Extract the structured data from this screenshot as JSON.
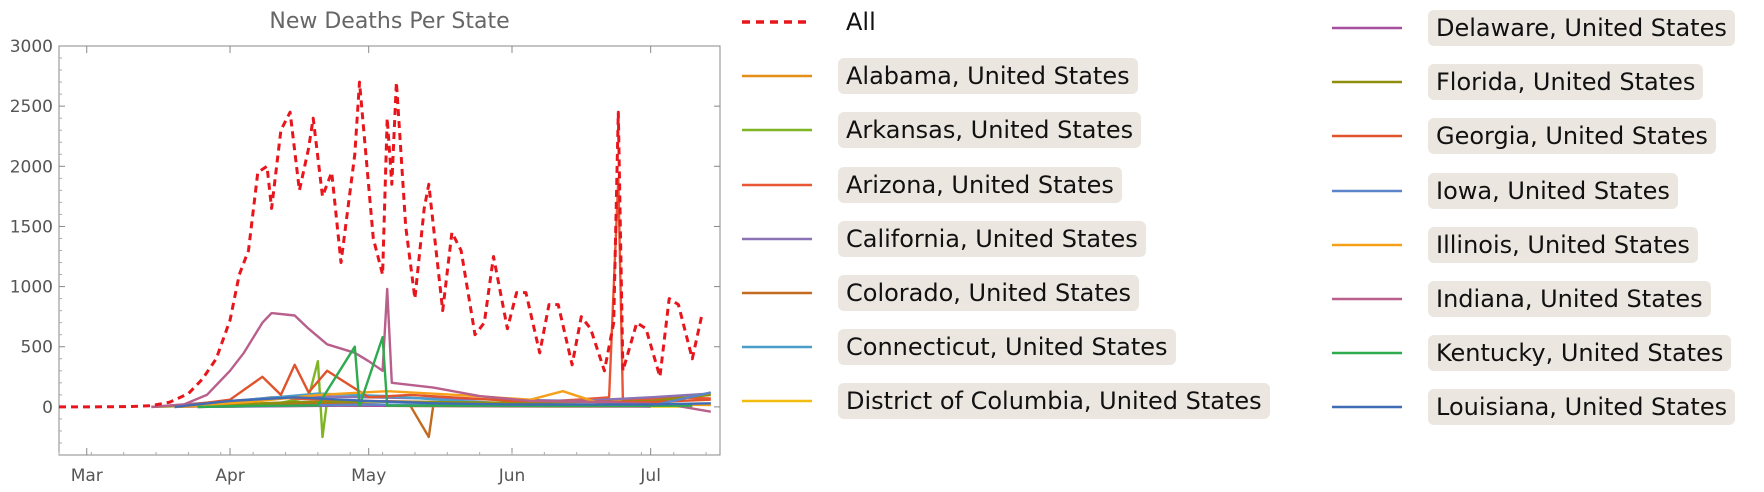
{
  "chart_data": {
    "type": "line",
    "title": "New Deaths Per State",
    "xlabel": "",
    "ylabel": "",
    "x_ticks": [
      "Mar",
      "Apr",
      "May",
      "Jun",
      "Jul"
    ],
    "x_range": [
      "2020-02-24",
      "2020-07-16"
    ],
    "ylim": [
      -400,
      3000
    ],
    "y_ticks": [
      0,
      500,
      1000,
      1500,
      2000,
      2500,
      3000
    ],
    "grid": false,
    "legend_position": "right",
    "series": [
      {
        "name": "All",
        "color": "#e8161c",
        "dash": "dashed",
        "key": [
          [
            "2020-02-24",
            0
          ],
          [
            "2020-03-01",
            0
          ],
          [
            "2020-03-10",
            2
          ],
          [
            "2020-03-15",
            10
          ],
          [
            "2020-03-19",
            40
          ],
          [
            "2020-03-23",
            110
          ],
          [
            "2020-03-26",
            230
          ],
          [
            "2020-03-29",
            400
          ],
          [
            "2020-04-01",
            720
          ],
          [
            "2020-04-03",
            1100
          ],
          [
            "2020-04-05",
            1300
          ],
          [
            "2020-04-07",
            1950
          ],
          [
            "2020-04-09",
            2000
          ],
          [
            "2020-04-10",
            1650
          ],
          [
            "2020-04-12",
            2300
          ],
          [
            "2020-04-14",
            2450
          ],
          [
            "2020-04-16",
            1800
          ],
          [
            "2020-04-18",
            2150
          ],
          [
            "2020-04-19",
            2400
          ],
          [
            "2020-04-21",
            1750
          ],
          [
            "2020-04-23",
            1950
          ],
          [
            "2020-04-25",
            1200
          ],
          [
            "2020-04-28",
            2100
          ],
          [
            "2020-04-29",
            2700
          ],
          [
            "2020-05-02",
            1400
          ],
          [
            "2020-05-04",
            1100
          ],
          [
            "2020-05-05",
            2400
          ],
          [
            "2020-05-06",
            1850
          ],
          [
            "2020-05-07",
            2700
          ],
          [
            "2020-05-09",
            1500
          ],
          [
            "2020-05-11",
            900
          ],
          [
            "2020-05-13",
            1650
          ],
          [
            "2020-05-14",
            1850
          ],
          [
            "2020-05-17",
            800
          ],
          [
            "2020-05-19",
            1450
          ],
          [
            "2020-05-21",
            1300
          ],
          [
            "2020-05-24",
            600
          ],
          [
            "2020-05-26",
            700
          ],
          [
            "2020-05-28",
            1250
          ],
          [
            "2020-05-31",
            650
          ],
          [
            "2020-06-02",
            950
          ],
          [
            "2020-06-04",
            950
          ],
          [
            "2020-06-07",
            450
          ],
          [
            "2020-06-09",
            850
          ],
          [
            "2020-06-11",
            850
          ],
          [
            "2020-06-14",
            350
          ],
          [
            "2020-06-16",
            750
          ],
          [
            "2020-06-18",
            650
          ],
          [
            "2020-06-21",
            300
          ],
          [
            "2020-06-23",
            700
          ],
          [
            "2020-06-24",
            2450
          ],
          [
            "2020-06-25",
            300
          ],
          [
            "2020-06-28",
            700
          ],
          [
            "2020-06-30",
            650
          ],
          [
            "2020-07-03",
            250
          ],
          [
            "2020-07-05",
            900
          ],
          [
            "2020-07-07",
            850
          ],
          [
            "2020-07-10",
            400
          ],
          [
            "2020-07-12",
            750
          ]
        ]
      },
      {
        "name": "Alabama, United States",
        "color": "#e38e16",
        "key": [
          [
            "2020-03-25",
            0
          ],
          [
            "2020-04-05",
            8
          ],
          [
            "2020-04-20",
            15
          ],
          [
            "2020-05-05",
            12
          ],
          [
            "2020-05-20",
            18
          ],
          [
            "2020-06-05",
            15
          ],
          [
            "2020-06-20",
            20
          ],
          [
            "2020-07-05",
            25
          ],
          [
            "2020-07-14",
            20
          ]
        ]
      },
      {
        "name": "Arkansas, United States",
        "color": "#7fb424",
        "key": [
          [
            "2020-03-25",
            0
          ],
          [
            "2020-04-10",
            20
          ],
          [
            "2020-04-18",
            80
          ],
          [
            "2020-04-20",
            380
          ],
          [
            "2020-04-21",
            -250
          ],
          [
            "2020-04-22",
            50
          ],
          [
            "2020-05-01",
            20
          ],
          [
            "2020-05-15",
            10
          ],
          [
            "2020-06-01",
            5
          ],
          [
            "2020-06-20",
            8
          ],
          [
            "2020-07-10",
            10
          ]
        ]
      },
      {
        "name": "Arizona, United States",
        "color": "#e85635",
        "key": [
          [
            "2020-03-20",
            0
          ],
          [
            "2020-04-01",
            40
          ],
          [
            "2020-04-10",
            80
          ],
          [
            "2020-04-20",
            60
          ],
          [
            "2020-05-01",
            50
          ],
          [
            "2020-05-15",
            40
          ],
          [
            "2020-06-01",
            30
          ],
          [
            "2020-06-15",
            60
          ],
          [
            "2020-06-22",
            80
          ],
          [
            "2020-06-24",
            1900
          ],
          [
            "2020-06-25",
            50
          ],
          [
            "2020-07-05",
            80
          ],
          [
            "2020-07-14",
            70
          ]
        ]
      },
      {
        "name": "California, United States",
        "color": "#8a72b4",
        "key": [
          [
            "2020-03-15",
            0
          ],
          [
            "2020-04-01",
            50
          ],
          [
            "2020-04-15",
            90
          ],
          [
            "2020-05-01",
            80
          ],
          [
            "2020-05-15",
            70
          ],
          [
            "2020-06-01",
            60
          ],
          [
            "2020-06-15",
            50
          ],
          [
            "2020-07-01",
            80
          ],
          [
            "2020-07-14",
            110
          ]
        ]
      },
      {
        "name": "Colorado, United States",
        "color": "#c26a20",
        "key": [
          [
            "2020-03-20",
            0
          ],
          [
            "2020-04-10",
            20
          ],
          [
            "2020-04-25",
            30
          ],
          [
            "2020-05-10",
            10
          ],
          [
            "2020-05-14",
            -250
          ],
          [
            "2020-05-15",
            20
          ],
          [
            "2020-06-01",
            5
          ],
          [
            "2020-06-20",
            10
          ],
          [
            "2020-07-10",
            5
          ]
        ]
      },
      {
        "name": "Connecticut, United States",
        "color": "#4a9ec9",
        "key": [
          [
            "2020-03-20",
            0
          ],
          [
            "2020-04-05",
            60
          ],
          [
            "2020-04-20",
            110
          ],
          [
            "2020-05-05",
            90
          ],
          [
            "2020-05-20",
            50
          ],
          [
            "2020-06-05",
            20
          ],
          [
            "2020-06-20",
            10
          ],
          [
            "2020-07-10",
            5
          ]
        ]
      },
      {
        "name": "District of Columbia, United States",
        "color": "#f3bd0f",
        "key": [
          [
            "2020-03-25",
            0
          ],
          [
            "2020-04-10",
            8
          ],
          [
            "2020-04-25",
            10
          ],
          [
            "2020-05-10",
            8
          ],
          [
            "2020-05-25",
            5
          ],
          [
            "2020-06-10",
            3
          ],
          [
            "2020-07-10",
            2
          ]
        ]
      },
      {
        "name": "Delaware, United States",
        "color": "#a54f9e",
        "key": [
          [
            "2020-03-25",
            0
          ],
          [
            "2020-04-10",
            5
          ],
          [
            "2020-04-25",
            10
          ],
          [
            "2020-05-10",
            8
          ],
          [
            "2020-06-01",
            5
          ],
          [
            "2020-07-01",
            3
          ]
        ]
      },
      {
        "name": "Florida, United States",
        "color": "#8f8f0d",
        "key": [
          [
            "2020-03-15",
            0
          ],
          [
            "2020-04-01",
            20
          ],
          [
            "2020-04-15",
            40
          ],
          [
            "2020-05-01",
            45
          ],
          [
            "2020-05-15",
            40
          ],
          [
            "2020-06-01",
            35
          ],
          [
            "2020-06-15",
            40
          ],
          [
            "2020-07-01",
            50
          ],
          [
            "2020-07-14",
            100
          ]
        ]
      },
      {
        "name": "Georgia, United States",
        "color": "#e0532b",
        "key": [
          [
            "2020-03-20",
            0
          ],
          [
            "2020-04-01",
            60
          ],
          [
            "2020-04-08",
            250
          ],
          [
            "2020-04-12",
            100
          ],
          [
            "2020-04-15",
            350
          ],
          [
            "2020-04-18",
            120
          ],
          [
            "2020-04-22",
            300
          ],
          [
            "2020-05-01",
            80
          ],
          [
            "2020-05-10",
            100
          ],
          [
            "2020-06-01",
            50
          ],
          [
            "2020-07-01",
            40
          ],
          [
            "2020-07-14",
            60
          ]
        ]
      },
      {
        "name": "Iowa, United States",
        "color": "#5c84c8",
        "key": [
          [
            "2020-03-25",
            0
          ],
          [
            "2020-04-15",
            10
          ],
          [
            "2020-05-01",
            20
          ],
          [
            "2020-05-15",
            15
          ],
          [
            "2020-06-01",
            10
          ],
          [
            "2020-07-01",
            8
          ],
          [
            "2020-07-14",
            120
          ]
        ]
      },
      {
        "name": "Illinois, United States",
        "color": "#f6a01a",
        "key": [
          [
            "2020-03-20",
            0
          ],
          [
            "2020-04-05",
            40
          ],
          [
            "2020-04-20",
            100
          ],
          [
            "2020-05-05",
            130
          ],
          [
            "2020-05-20",
            100
          ],
          [
            "2020-06-05",
            60
          ],
          [
            "2020-06-12",
            130
          ],
          [
            "2020-06-20",
            30
          ],
          [
            "2020-07-05",
            20
          ],
          [
            "2020-07-14",
            15
          ]
        ]
      },
      {
        "name": "Indiana, United States",
        "color": "#b85f8c",
        "key": [
          [
            "2020-03-15",
            0
          ],
          [
            "2020-03-22",
            20
          ],
          [
            "2020-03-27",
            100
          ],
          [
            "2020-04-01",
            300
          ],
          [
            "2020-04-04",
            450
          ],
          [
            "2020-04-08",
            700
          ],
          [
            "2020-04-10",
            780
          ],
          [
            "2020-04-15",
            760
          ],
          [
            "2020-04-18",
            650
          ],
          [
            "2020-04-22",
            520
          ],
          [
            "2020-04-28",
            450
          ],
          [
            "2020-05-01",
            380
          ],
          [
            "2020-05-04",
            300
          ],
          [
            "2020-05-05",
            980
          ],
          [
            "2020-05-06",
            200
          ],
          [
            "2020-05-15",
            160
          ],
          [
            "2020-05-25",
            90
          ],
          [
            "2020-06-05",
            50
          ],
          [
            "2020-06-20",
            40
          ],
          [
            "2020-07-05",
            20
          ],
          [
            "2020-07-14",
            -40
          ]
        ]
      },
      {
        "name": "Kentucky, United States",
        "color": "#2eab4e",
        "key": [
          [
            "2020-03-25",
            0
          ],
          [
            "2020-04-05",
            8
          ],
          [
            "2020-04-20",
            12
          ],
          [
            "2020-04-28",
            500
          ],
          [
            "2020-04-29",
            10
          ],
          [
            "2020-05-04",
            580
          ],
          [
            "2020-05-05",
            10
          ],
          [
            "2020-05-20",
            10
          ],
          [
            "2020-06-10",
            8
          ],
          [
            "2020-07-10",
            10
          ]
        ]
      },
      {
        "name": "Louisiana, United States",
        "color": "#3f6cb5",
        "key": [
          [
            "2020-03-20",
            0
          ],
          [
            "2020-04-01",
            50
          ],
          [
            "2020-04-15",
            80
          ],
          [
            "2020-05-01",
            50
          ],
          [
            "2020-05-15",
            30
          ],
          [
            "2020-06-01",
            20
          ],
          [
            "2020-07-01",
            20
          ],
          [
            "2020-07-14",
            30
          ]
        ]
      }
    ]
  }
}
